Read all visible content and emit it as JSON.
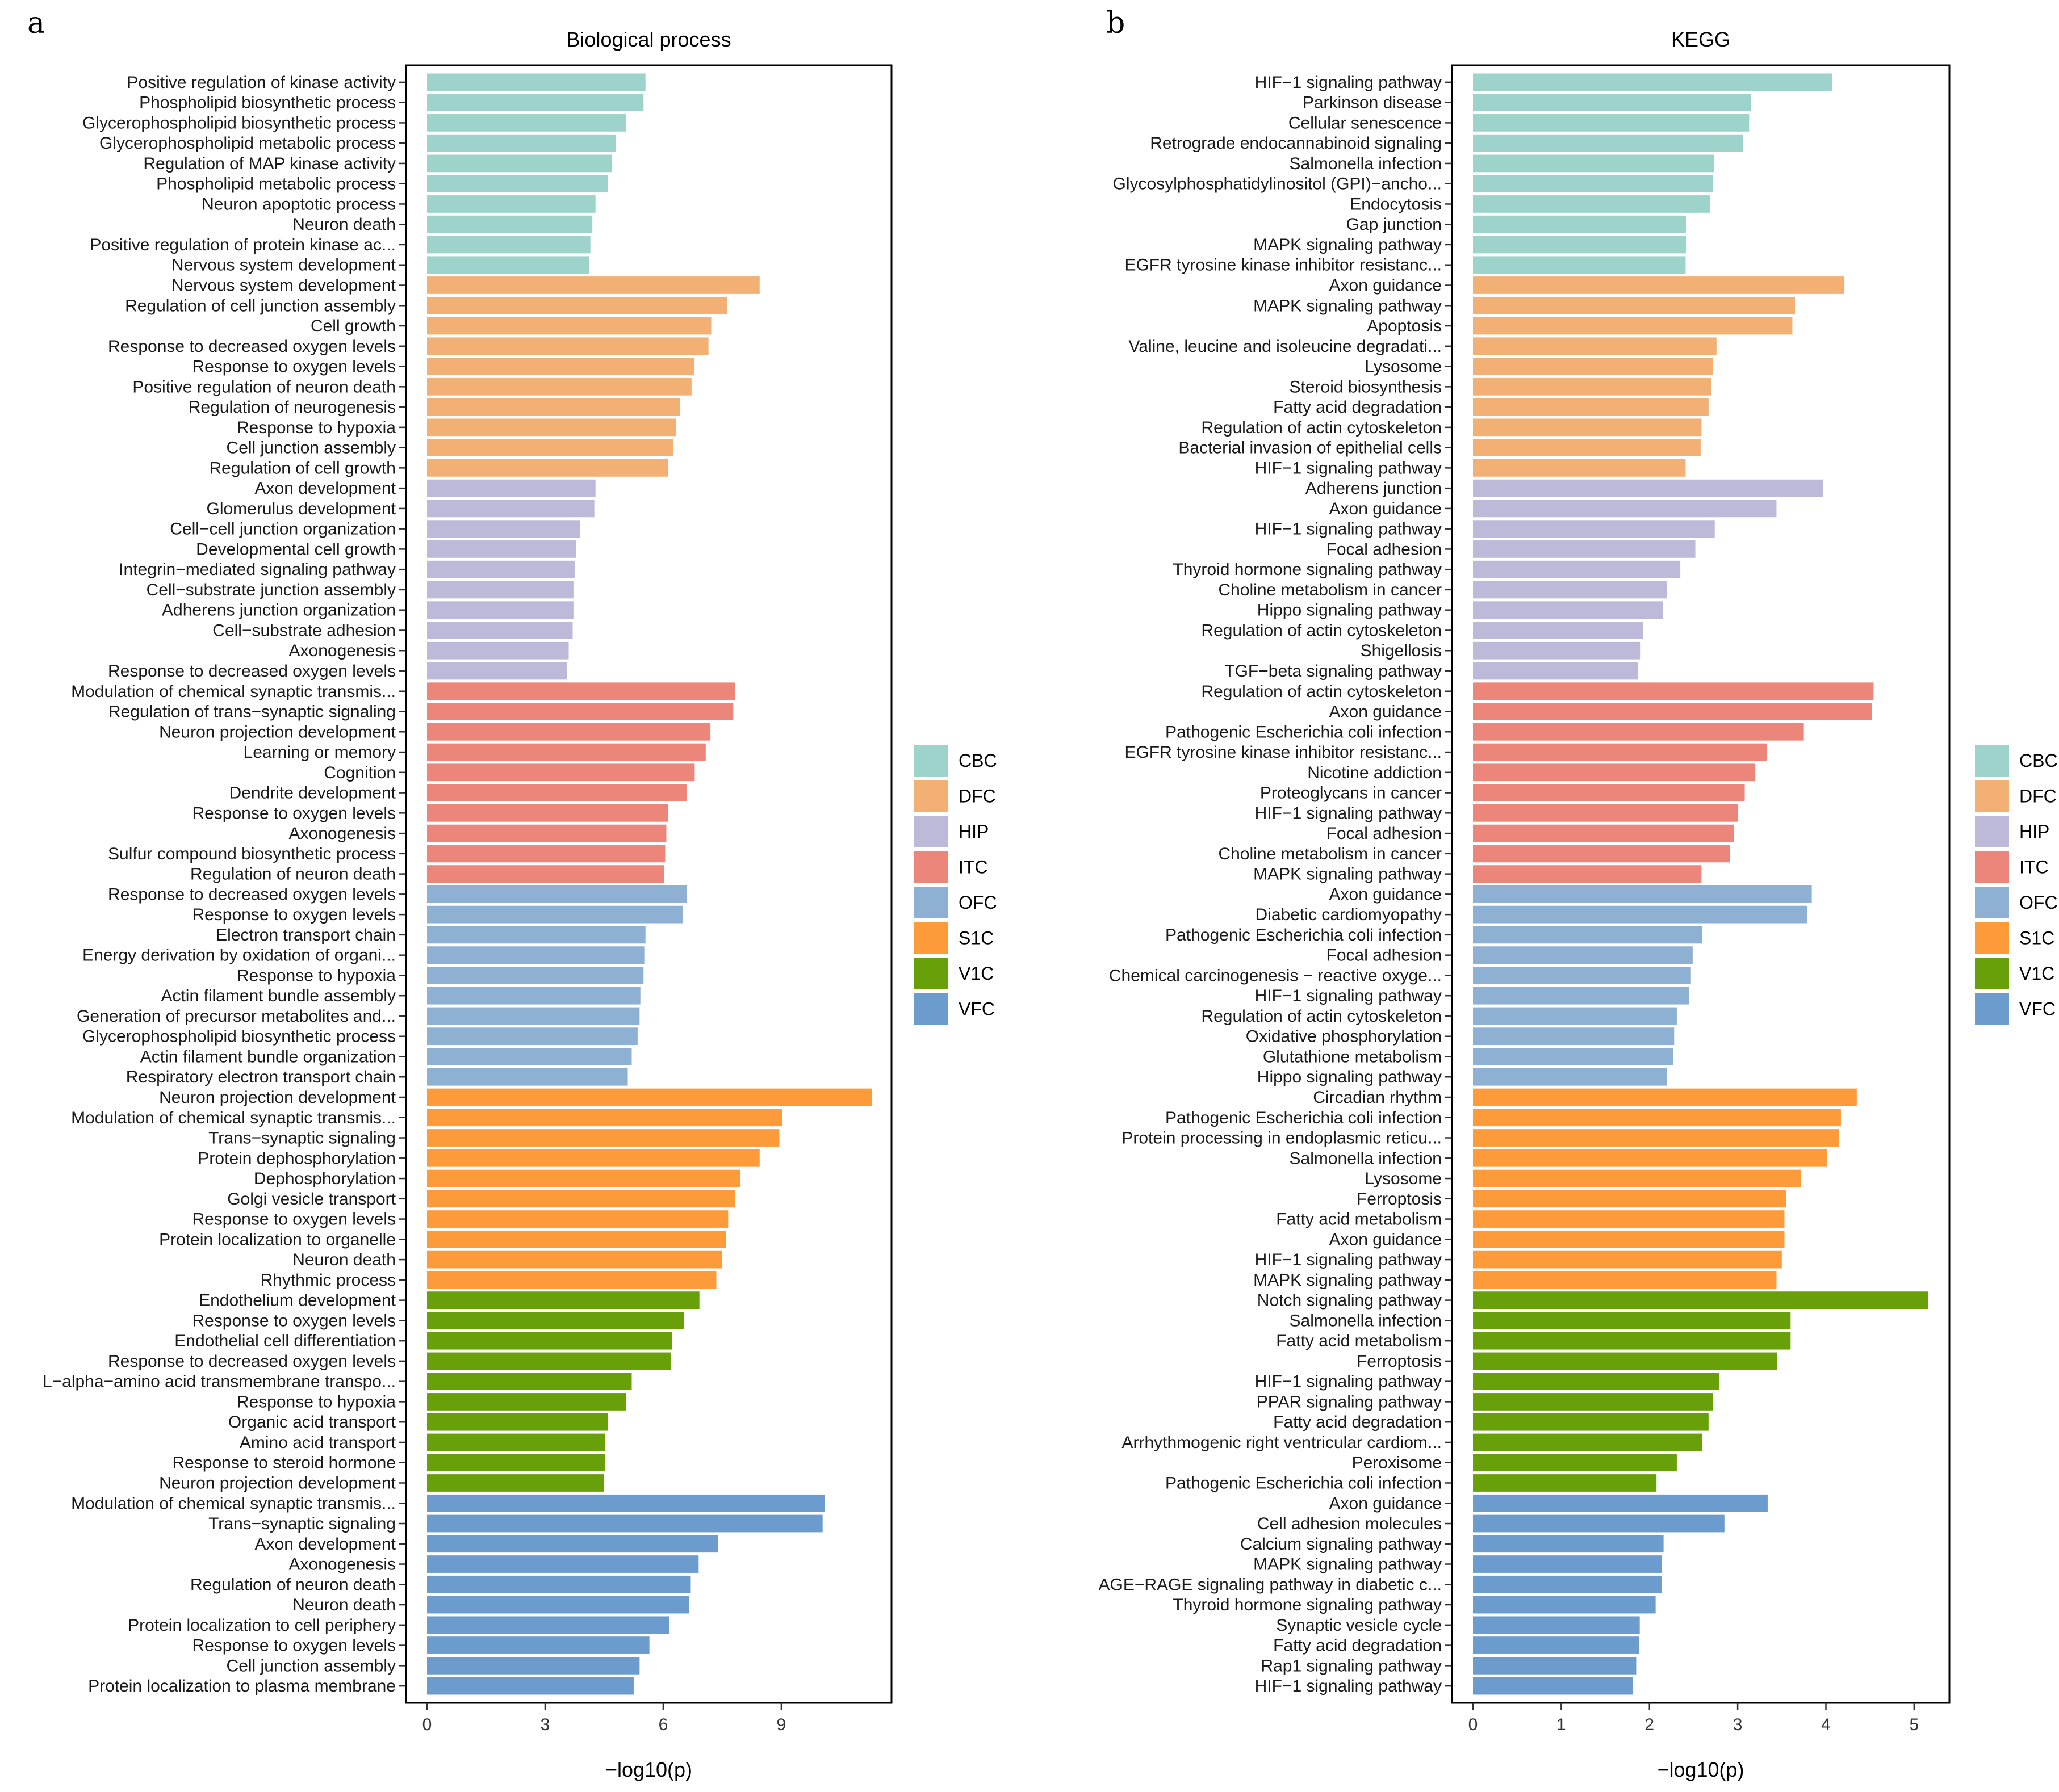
{
  "groups": {
    "CBC": "#9ed3cb",
    "DFC": "#f2b074",
    "HIP": "#bcbad8",
    "ITC": "#ec867a",
    "OFC": "#8eb0d2",
    "S1C": "#fd9b3b",
    "V1C": "#68a00a",
    "VFC": "#6b9ccd"
  },
  "chart_data": [
    {
      "type": "bar",
      "orientation": "horizontal",
      "panel": "a",
      "title": "Biological process",
      "xlabel": "−log10(p)",
      "ylabel": "",
      "xlim": [
        0,
        11.8
      ],
      "xticks": [
        0,
        3,
        6,
        9
      ],
      "grid": false,
      "legend": [
        "CBC",
        "DFC",
        "HIP",
        "ITC",
        "OFC",
        "S1C",
        "V1C",
        "VFC"
      ],
      "legend_position": "right",
      "categories": [
        "Positive regulation of kinase activity",
        "Phospholipid biosynthetic process",
        "Glycerophospholipid biosynthetic process",
        "Glycerophospholipid metabolic process",
        "Regulation of MAP kinase activity",
        "Phospholipid metabolic process",
        "Neuron apoptotic process",
        "Neuron death",
        "Positive regulation of protein kinase ac...",
        "Nervous system development",
        "Nervous system development",
        "Regulation of cell junction assembly",
        "Cell growth",
        "Response to decreased oxygen levels",
        "Response to oxygen levels",
        "Positive regulation of neuron death",
        "Regulation of neurogenesis",
        "Response to hypoxia",
        "Cell junction assembly",
        "Regulation of cell growth",
        "Axon development",
        "Glomerulus development",
        "Cell−cell junction organization",
        "Developmental cell growth",
        "Integrin−mediated signaling pathway",
        "Cell−substrate junction assembly",
        "Adherens junction organization",
        "Cell−substrate adhesion",
        "Axonogenesis",
        "Response to decreased oxygen levels",
        "Modulation of chemical synaptic transmis...",
        "Regulation of trans−synaptic signaling",
        "Neuron projection development",
        "Learning or memory",
        "Cognition",
        "Dendrite development",
        "Response to oxygen levels",
        "Axonogenesis",
        "Sulfur compound biosynthetic process",
        "Regulation of neuron death",
        "Response to decreased oxygen levels",
        "Response to oxygen levels",
        "Electron transport chain",
        "Energy derivation by oxidation of organi...",
        "Response to hypoxia",
        "Actin filament bundle assembly",
        "Generation of precursor metabolites and...",
        "Glycerophospholipid biosynthetic process",
        "Actin filament bundle organization",
        "Respiratory electron transport chain",
        "Neuron projection development",
        "Modulation of chemical synaptic transmis...",
        "Trans−synaptic signaling",
        "Protein dephosphorylation",
        "Dephosphorylation",
        "Golgi vesicle transport",
        "Response to oxygen levels",
        "Protein localization to organelle",
        "Neuron death",
        "Rhythmic process",
        "Endothelium development",
        "Response to oxygen levels",
        "Endothelial cell differentiation",
        "Response to decreased oxygen levels",
        "L−alpha−amino acid transmembrane transpo...",
        "Response to hypoxia",
        "Organic acid transport",
        "Amino acid transport",
        "Response to steroid hormone",
        "Neuron projection development",
        "Modulation of chemical synaptic transmis...",
        "Trans−synaptic signaling",
        "Axon development",
        "Axonogenesis",
        "Regulation of neuron death",
        "Neuron death",
        "Protein localization to cell periphery",
        "Response to oxygen levels",
        "Cell junction assembly",
        "Protein localization to plasma membrane"
      ],
      "values": [
        5.55,
        5.5,
        5.05,
        4.8,
        4.7,
        4.6,
        4.28,
        4.2,
        4.15,
        4.12,
        8.45,
        7.62,
        7.22,
        7.15,
        6.78,
        6.72,
        6.42,
        6.32,
        6.25,
        6.12,
        4.28,
        4.25,
        3.88,
        3.78,
        3.75,
        3.72,
        3.72,
        3.7,
        3.6,
        3.55,
        7.82,
        7.78,
        7.2,
        7.08,
        6.8,
        6.6,
        6.12,
        6.08,
        6.05,
        6.02,
        6.6,
        6.5,
        5.55,
        5.52,
        5.5,
        5.42,
        5.4,
        5.35,
        5.2,
        5.1,
        11.3,
        9.02,
        8.95,
        8.45,
        7.95,
        7.82,
        7.65,
        7.6,
        7.5,
        7.35,
        6.92,
        6.52,
        6.22,
        6.2,
        5.2,
        5.05,
        4.6,
        4.52,
        4.52,
        4.5,
        10.1,
        10.05,
        7.4,
        6.9,
        6.7,
        6.65,
        6.15,
        5.65,
        5.4,
        5.25
      ],
      "groups": [
        "CBC",
        "CBC",
        "CBC",
        "CBC",
        "CBC",
        "CBC",
        "CBC",
        "CBC",
        "CBC",
        "CBC",
        "DFC",
        "DFC",
        "DFC",
        "DFC",
        "DFC",
        "DFC",
        "DFC",
        "DFC",
        "DFC",
        "DFC",
        "HIP",
        "HIP",
        "HIP",
        "HIP",
        "HIP",
        "HIP",
        "HIP",
        "HIP",
        "HIP",
        "HIP",
        "ITC",
        "ITC",
        "ITC",
        "ITC",
        "ITC",
        "ITC",
        "ITC",
        "ITC",
        "ITC",
        "ITC",
        "OFC",
        "OFC",
        "OFC",
        "OFC",
        "OFC",
        "OFC",
        "OFC",
        "OFC",
        "OFC",
        "OFC",
        "S1C",
        "S1C",
        "S1C",
        "S1C",
        "S1C",
        "S1C",
        "S1C",
        "S1C",
        "S1C",
        "S1C",
        "V1C",
        "V1C",
        "V1C",
        "V1C",
        "V1C",
        "V1C",
        "V1C",
        "V1C",
        "V1C",
        "V1C",
        "VFC",
        "VFC",
        "VFC",
        "VFC",
        "VFC",
        "VFC",
        "VFC",
        "VFC",
        "VFC",
        "VFC"
      ]
    },
    {
      "type": "bar",
      "orientation": "horizontal",
      "panel": "b",
      "title": "KEGG",
      "xlabel": "−log10(p)",
      "ylabel": "",
      "xlim": [
        0,
        5.4
      ],
      "xticks": [
        0,
        1,
        2,
        3,
        4,
        5
      ],
      "grid": false,
      "legend": [
        "CBC",
        "DFC",
        "HIP",
        "ITC",
        "OFC",
        "S1C",
        "V1C",
        "VFC"
      ],
      "legend_position": "right",
      "categories": [
        "HIF−1 signaling pathway",
        "Parkinson disease",
        "Cellular senescence",
        "Retrograde endocannabinoid signaling",
        "Salmonella infection",
        "Glycosylphosphatidylinositol (GPI)−ancho...",
        "Endocytosis",
        "Gap junction",
        "MAPK signaling pathway",
        "EGFR tyrosine kinase inhibitor resistanc...",
        "Axon guidance",
        "MAPK signaling pathway",
        "Apoptosis",
        "Valine, leucine and isoleucine degradati...",
        "Lysosome",
        "Steroid biosynthesis",
        "Fatty acid degradation",
        "Regulation of actin cytoskeleton",
        "Bacterial invasion of epithelial cells",
        "HIF−1 signaling pathway",
        "Adherens junction",
        "Axon guidance",
        "HIF−1 signaling pathway",
        "Focal adhesion",
        "Thyroid hormone signaling pathway",
        "Choline metabolism in cancer",
        "Hippo signaling pathway",
        "Regulation of actin cytoskeleton",
        "Shigellosis",
        "TGF−beta signaling pathway",
        "Regulation of actin cytoskeleton",
        "Axon guidance",
        "Pathogenic Escherichia coli infection",
        "EGFR tyrosine kinase inhibitor resistanc...",
        "Nicotine addiction",
        "Proteoglycans in cancer",
        "HIF−1 signaling pathway",
        "Focal adhesion",
        "Choline metabolism in cancer",
        "MAPK signaling pathway",
        "Axon guidance",
        "Diabetic cardiomyopathy",
        "Pathogenic Escherichia coli infection",
        "Focal adhesion",
        "Chemical carcinogenesis − reactive oxyge...",
        "HIF−1 signaling pathway",
        "Regulation of actin cytoskeleton",
        "Oxidative phosphorylation",
        "Glutathione metabolism",
        "Hippo signaling pathway",
        "Circadian rhythm",
        "Pathogenic Escherichia coli infection",
        "Protein processing in endoplasmic reticu...",
        "Salmonella infection",
        "Lysosome",
        "Ferroptosis",
        "Fatty acid metabolism",
        "Axon guidance",
        "HIF−1 signaling pathway",
        "MAPK signaling pathway",
        "Notch signaling pathway",
        "Salmonella infection",
        "Fatty acid metabolism",
        "Ferroptosis",
        "HIF−1 signaling pathway",
        "PPAR signaling pathway",
        "Fatty acid degradation",
        "Arrhythmogenic right ventricular cardiom...",
        "Peroxisome",
        "Pathogenic Escherichia coli infection",
        "Axon guidance",
        "Cell adhesion molecules",
        "Calcium signaling pathway",
        "MAPK signaling pathway",
        "AGE−RAGE signaling pathway in diabetic c...",
        "Thyroid hormone signaling pathway",
        "Synaptic vesicle cycle",
        "Fatty acid degradation",
        "Rap1 signaling pathway",
        "HIF−1 signaling pathway"
      ],
      "values": [
        4.07,
        3.15,
        3.13,
        3.06,
        2.73,
        2.72,
        2.69,
        2.42,
        2.42,
        2.41,
        4.21,
        3.65,
        3.62,
        2.76,
        2.72,
        2.7,
        2.67,
        2.59,
        2.58,
        2.41,
        3.97,
        3.44,
        2.74,
        2.52,
        2.35,
        2.2,
        2.15,
        1.93,
        1.9,
        1.87,
        4.54,
        4.52,
        3.75,
        3.33,
        3.2,
        3.08,
        3.0,
        2.96,
        2.91,
        2.59,
        3.84,
        3.79,
        2.6,
        2.49,
        2.47,
        2.45,
        2.31,
        2.28,
        2.27,
        2.2,
        4.35,
        4.17,
        4.15,
        4.01,
        3.72,
        3.55,
        3.53,
        3.53,
        3.5,
        3.44,
        5.16,
        3.6,
        3.6,
        3.45,
        2.79,
        2.72,
        2.67,
        2.6,
        2.31,
        2.08,
        3.34,
        2.85,
        2.16,
        2.14,
        2.14,
        2.07,
        1.89,
        1.88,
        1.85,
        1.81
      ],
      "groups": [
        "CBC",
        "CBC",
        "CBC",
        "CBC",
        "CBC",
        "CBC",
        "CBC",
        "CBC",
        "CBC",
        "CBC",
        "DFC",
        "DFC",
        "DFC",
        "DFC",
        "DFC",
        "DFC",
        "DFC",
        "DFC",
        "DFC",
        "DFC",
        "HIP",
        "HIP",
        "HIP",
        "HIP",
        "HIP",
        "HIP",
        "HIP",
        "HIP",
        "HIP",
        "HIP",
        "ITC",
        "ITC",
        "ITC",
        "ITC",
        "ITC",
        "ITC",
        "ITC",
        "ITC",
        "ITC",
        "ITC",
        "OFC",
        "OFC",
        "OFC",
        "OFC",
        "OFC",
        "OFC",
        "OFC",
        "OFC",
        "OFC",
        "OFC",
        "S1C",
        "S1C",
        "S1C",
        "S1C",
        "S1C",
        "S1C",
        "S1C",
        "S1C",
        "S1C",
        "S1C",
        "V1C",
        "V1C",
        "V1C",
        "V1C",
        "V1C",
        "V1C",
        "V1C",
        "V1C",
        "V1C",
        "V1C",
        "VFC",
        "VFC",
        "VFC",
        "VFC",
        "VFC",
        "VFC",
        "VFC",
        "VFC",
        "VFC",
        "VFC"
      ]
    }
  ]
}
